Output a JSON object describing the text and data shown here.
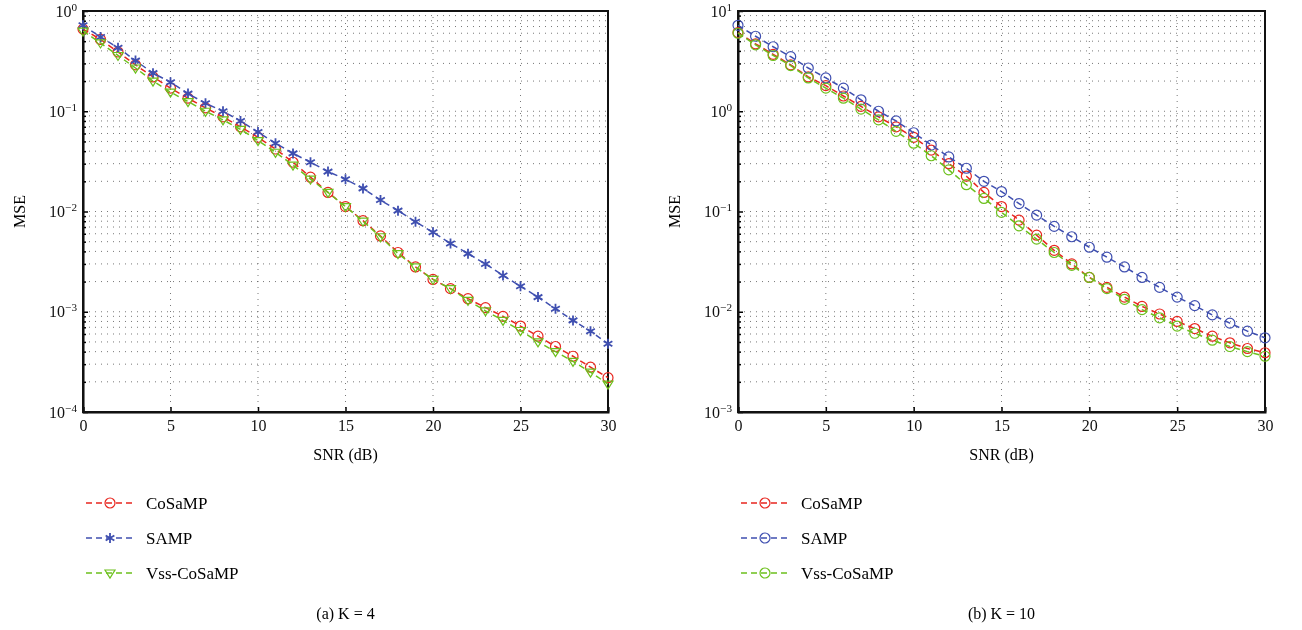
{
  "chart_data": [
    {
      "type": "line",
      "title": "(a) K = 4",
      "xlabel": "SNR (dB)",
      "ylabel": "MSE",
      "log": "y",
      "grid": true,
      "legend": "bottom",
      "line_style": "dashed",
      "xlim": [
        0,
        30
      ],
      "xticks": [
        0,
        5,
        10,
        15,
        20,
        25,
        30
      ],
      "ylim": [
        0.0001,
        1
      ],
      "yticks": [
        {
          "value": 0.0001,
          "label": "10$^{−4}$"
        },
        {
          "value": 0.0002,
          "label": null
        },
        {
          "value": 0.0003,
          "label": null
        },
        {
          "value": 0.0004,
          "label": null
        },
        {
          "value": 0.0005,
          "label": null
        },
        {
          "value": 0.0006,
          "label": null
        },
        {
          "value": 0.0007,
          "label": null
        },
        {
          "value": 0.0008,
          "label": null
        },
        {
          "value": 0.0009,
          "label": null
        },
        {
          "value": 0.001,
          "label": "10$^{−3}$"
        },
        {
          "value": 0.002,
          "label": null
        },
        {
          "value": 0.003,
          "label": null
        },
        {
          "value": 0.004,
          "label": null
        },
        {
          "value": 0.005,
          "label": null
        },
        {
          "value": 0.006,
          "label": null
        },
        {
          "value": 0.007,
          "label": null
        },
        {
          "value": 0.008,
          "label": null
        },
        {
          "value": 0.009,
          "label": null
        },
        {
          "value": 0.01,
          "label": "10$^{−2}$"
        },
        {
          "value": 0.02,
          "label": null
        },
        {
          "value": 0.03,
          "label": null
        },
        {
          "value": 0.04,
          "label": null
        },
        {
          "value": 0.05,
          "label": null
        },
        {
          "value": 0.06,
          "label": null
        },
        {
          "value": 0.07,
          "label": null
        },
        {
          "value": 0.08,
          "label": null
        },
        {
          "value": 0.09,
          "label": null
        },
        {
          "value": 0.1,
          "label": "10$^{−1}$"
        },
        {
          "value": 0.2,
          "label": null
        },
        {
          "value": 0.3,
          "label": null
        },
        {
          "value": 0.4,
          "label": null
        },
        {
          "value": 0.5,
          "label": null
        },
        {
          "value": 0.6,
          "label": null
        },
        {
          "value": 0.7,
          "label": null
        },
        {
          "value": 0.8,
          "label": null
        },
        {
          "value": 0.9,
          "label": null
        },
        {
          "value": 1,
          "label": "10$^{0}$"
        }
      ],
      "x": [
        0,
        1,
        2,
        3,
        4,
        5,
        6,
        7,
        8,
        9,
        10,
        11,
        12,
        13,
        14,
        15,
        16,
        17,
        18,
        19,
        20,
        21,
        22,
        23,
        24,
        25,
        26,
        27,
        28,
        29,
        30
      ],
      "series": [
        {
          "name": "CoSaMP",
          "color": "#e8261f",
          "marker": "circle",
          "values": [
            0.66,
            0.52,
            0.39,
            0.29,
            0.22,
            0.17,
            0.135,
            0.108,
            0.088,
            0.07,
            0.055,
            0.042,
            0.031,
            0.022,
            0.0155,
            0.0112,
            0.0081,
            0.0057,
            0.0039,
            0.0028,
            0.0021,
            0.0017,
            0.00135,
            0.0011,
            0.0009,
            0.00072,
            0.00057,
            0.00045,
            0.00036,
            0.00028,
            0.00022
          ]
        },
        {
          "name": "SAMP",
          "color": "#3f4fb0",
          "marker": "cross",
          "values": [
            0.72,
            0.55,
            0.43,
            0.32,
            0.24,
            0.195,
            0.15,
            0.12,
            0.1,
            0.08,
            0.062,
            0.048,
            0.038,
            0.031,
            0.025,
            0.021,
            0.017,
            0.013,
            0.0102,
            0.0079,
            0.0062,
            0.0048,
            0.0038,
            0.003,
            0.0023,
            0.0018,
            0.0014,
            0.00107,
            0.00082,
            0.00064,
            0.00048
          ]
        },
        {
          "name": "Vss-CoSaMP",
          "color": "#6cc01c",
          "marker": "triangle",
          "values": [
            0.63,
            0.48,
            0.36,
            0.27,
            0.2,
            0.155,
            0.125,
            0.1,
            0.082,
            0.066,
            0.051,
            0.039,
            0.029,
            0.021,
            0.0155,
            0.0112,
            0.008,
            0.0056,
            0.0038,
            0.0028,
            0.0021,
            0.0017,
            0.0013,
            0.00102,
            0.00082,
            0.00065,
            0.0005,
            0.0004,
            0.00032,
            0.00025,
            0.00019
          ]
        }
      ]
    },
    {
      "type": "line",
      "title": "(b) K = 10",
      "xlabel": "SNR (dB)",
      "ylabel": "MSE",
      "log": "y",
      "grid": true,
      "legend": "bottom",
      "line_style": "dashed",
      "xlim": [
        0,
        30
      ],
      "xticks": [
        0,
        5,
        10,
        15,
        20,
        25,
        30
      ],
      "ylim": [
        0.001,
        10
      ],
      "yticks": [
        {
          "value": 0.001,
          "label": "10$^{−3}$"
        },
        {
          "value": 0.002,
          "label": null
        },
        {
          "value": 0.003,
          "label": null
        },
        {
          "value": 0.004,
          "label": null
        },
        {
          "value": 0.005,
          "label": null
        },
        {
          "value": 0.006,
          "label": null
        },
        {
          "value": 0.007,
          "label": null
        },
        {
          "value": 0.008,
          "label": null
        },
        {
          "value": 0.009,
          "label": null
        },
        {
          "value": 0.01,
          "label": "10$^{−2}$"
        },
        {
          "value": 0.02,
          "label": null
        },
        {
          "value": 0.03,
          "label": null
        },
        {
          "value": 0.04,
          "label": null
        },
        {
          "value": 0.05,
          "label": null
        },
        {
          "value": 0.06,
          "label": null
        },
        {
          "value": 0.07,
          "label": null
        },
        {
          "value": 0.08,
          "label": null
        },
        {
          "value": 0.09,
          "label": null
        },
        {
          "value": 0.1,
          "label": "10$^{−1}$"
        },
        {
          "value": 0.2,
          "label": null
        },
        {
          "value": 0.3,
          "label": null
        },
        {
          "value": 0.4,
          "label": null
        },
        {
          "value": 0.5,
          "label": null
        },
        {
          "value": 0.6,
          "label": null
        },
        {
          "value": 0.7,
          "label": null
        },
        {
          "value": 0.8,
          "label": null
        },
        {
          "value": 0.9,
          "label": null
        },
        {
          "value": 1,
          "label": "10$^{0}$"
        },
        {
          "value": 2,
          "label": null
        },
        {
          "value": 3,
          "label": null
        },
        {
          "value": 4,
          "label": null
        },
        {
          "value": 5,
          "label": null
        },
        {
          "value": 6,
          "label": null
        },
        {
          "value": 7,
          "label": null
        },
        {
          "value": 8,
          "label": null
        },
        {
          "value": 9,
          "label": null
        },
        {
          "value": 10,
          "label": "10$^{1}$"
        }
      ],
      "x": [
        0,
        1,
        2,
        3,
        4,
        5,
        6,
        7,
        8,
        9,
        10,
        11,
        12,
        13,
        14,
        15,
        16,
        17,
        18,
        19,
        20,
        21,
        22,
        23,
        24,
        25,
        26,
        27,
        28,
        29,
        30
      ],
      "series": [
        {
          "name": "CoSaMP",
          "color": "#e8261f",
          "marker": "circle",
          "values": [
            6.1,
            4.7,
            3.7,
            2.9,
            2.2,
            1.8,
            1.42,
            1.12,
            0.88,
            0.7,
            0.55,
            0.41,
            0.3,
            0.225,
            0.155,
            0.112,
            0.082,
            0.058,
            0.041,
            0.03,
            0.022,
            0.0175,
            0.014,
            0.0113,
            0.0095,
            0.008,
            0.0068,
            0.0057,
            0.0049,
            0.0043,
            0.0039
          ]
        },
        {
          "name": "SAMP",
          "color": "#3f4fb0",
          "marker": "circle",
          "values": [
            7.2,
            5.6,
            4.4,
            3.5,
            2.7,
            2.15,
            1.7,
            1.3,
            1.0,
            0.8,
            0.61,
            0.46,
            0.35,
            0.27,
            0.2,
            0.158,
            0.12,
            0.092,
            0.071,
            0.056,
            0.044,
            0.035,
            0.028,
            0.022,
            0.0175,
            0.014,
            0.0115,
            0.0093,
            0.0077,
            0.0064,
            0.0055
          ]
        },
        {
          "name": "Vss-CoSaMP",
          "color": "#6cc01c",
          "marker": "circle",
          "values": [
            6.0,
            4.6,
            3.6,
            2.85,
            2.15,
            1.7,
            1.35,
            1.05,
            0.82,
            0.63,
            0.48,
            0.36,
            0.26,
            0.185,
            0.135,
            0.098,
            0.072,
            0.053,
            0.039,
            0.029,
            0.022,
            0.017,
            0.0133,
            0.0105,
            0.0087,
            0.0072,
            0.0061,
            0.0052,
            0.0045,
            0.004,
            0.0036
          ]
        }
      ]
    }
  ]
}
